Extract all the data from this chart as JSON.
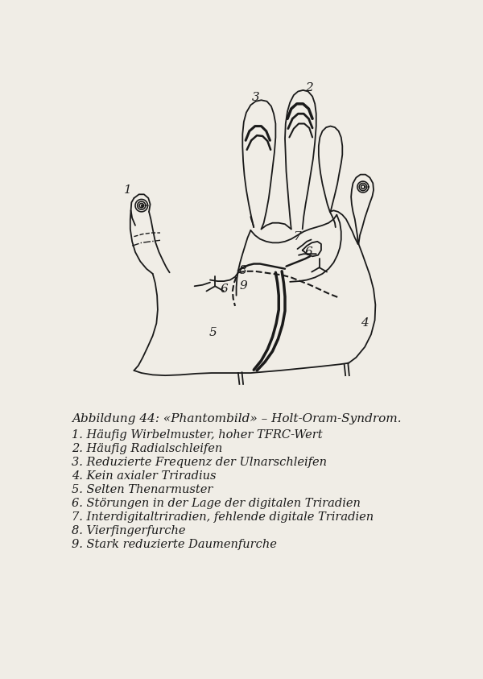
{
  "title": "Abbildung 44: «Phantombild» – Holt-Oram-Syndrom.",
  "legend_lines": [
    "1. Häufig Wirbelmuster, hoher TFRC-Wert",
    "2. Häufig Radialschleifen",
    "3. Reduzierte Frequenz der Ulnarschleifen",
    "4. Kein axialer Triradius",
    "5. Selten Thenarmuster",
    "6. Störungen in der Lage der digitalen Triradien",
    "7. Interdigitaltriradien, fehlende digitale Triradien",
    "8. Vierfingerfurche",
    "9. Stark reduzierte Daumenfurche"
  ],
  "bg_color": "#f0ede6",
  "line_color": "#1a1a1a",
  "fig_width": 6.0,
  "fig_height": 8.43,
  "dpi": 100
}
